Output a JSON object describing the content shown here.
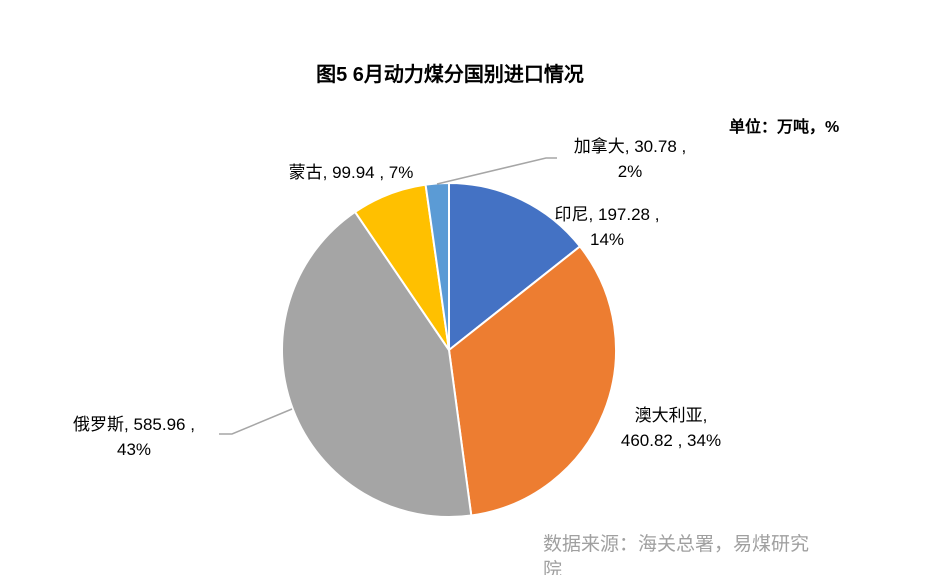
{
  "chart_data": {
    "type": "pie",
    "title": "图5 6月动力煤分国别进口情况",
    "unit": "单位：万吨，%",
    "categories": [
      "印尼",
      "澳大利亚",
      "俄罗斯",
      "蒙古",
      "加拿大"
    ],
    "values": [
      197.28,
      460.82,
      585.96,
      99.94,
      30.78
    ],
    "percents": [
      14,
      34,
      43,
      7,
      2
    ],
    "colors": [
      "#4472C4",
      "#ED7D31",
      "#A5A5A5",
      "#FFC000",
      "#5B9BD5"
    ]
  },
  "source": "数据来源：海关总署，易煤研究院"
}
